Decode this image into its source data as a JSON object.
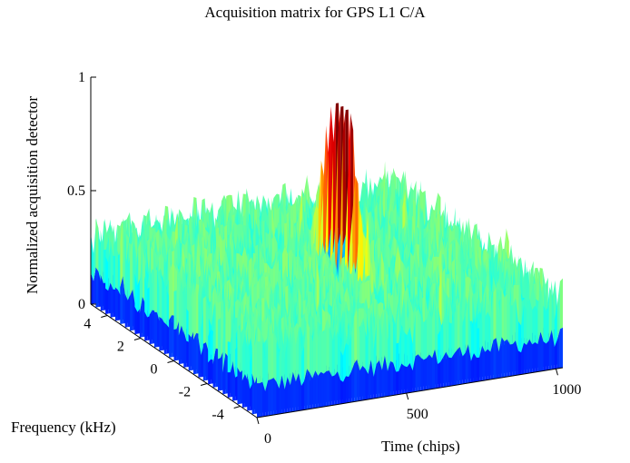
{
  "chart_data": {
    "type": "surface",
    "title": "Acquisition matrix for GPS L1 C/A",
    "xlabel": "Time  (chips)",
    "ylabel": "Frequency (kHz)",
    "zlabel": "Normalized acquisition detector",
    "x_ticks": [
      "0",
      "500",
      "1000"
    ],
    "y_ticks": [
      "4",
      "2",
      "0",
      "-2",
      "-4"
    ],
    "z_ticks": [
      "0",
      "0.5",
      "1"
    ],
    "xlim": [
      0,
      1023
    ],
    "ylim": [
      -5,
      5
    ],
    "zlim": [
      0,
      1
    ],
    "peak": {
      "time_chips": 560,
      "frequency_khz": 0,
      "value": 1.0
    },
    "noise_floor_approx": 0.35,
    "colormap": "jet"
  }
}
